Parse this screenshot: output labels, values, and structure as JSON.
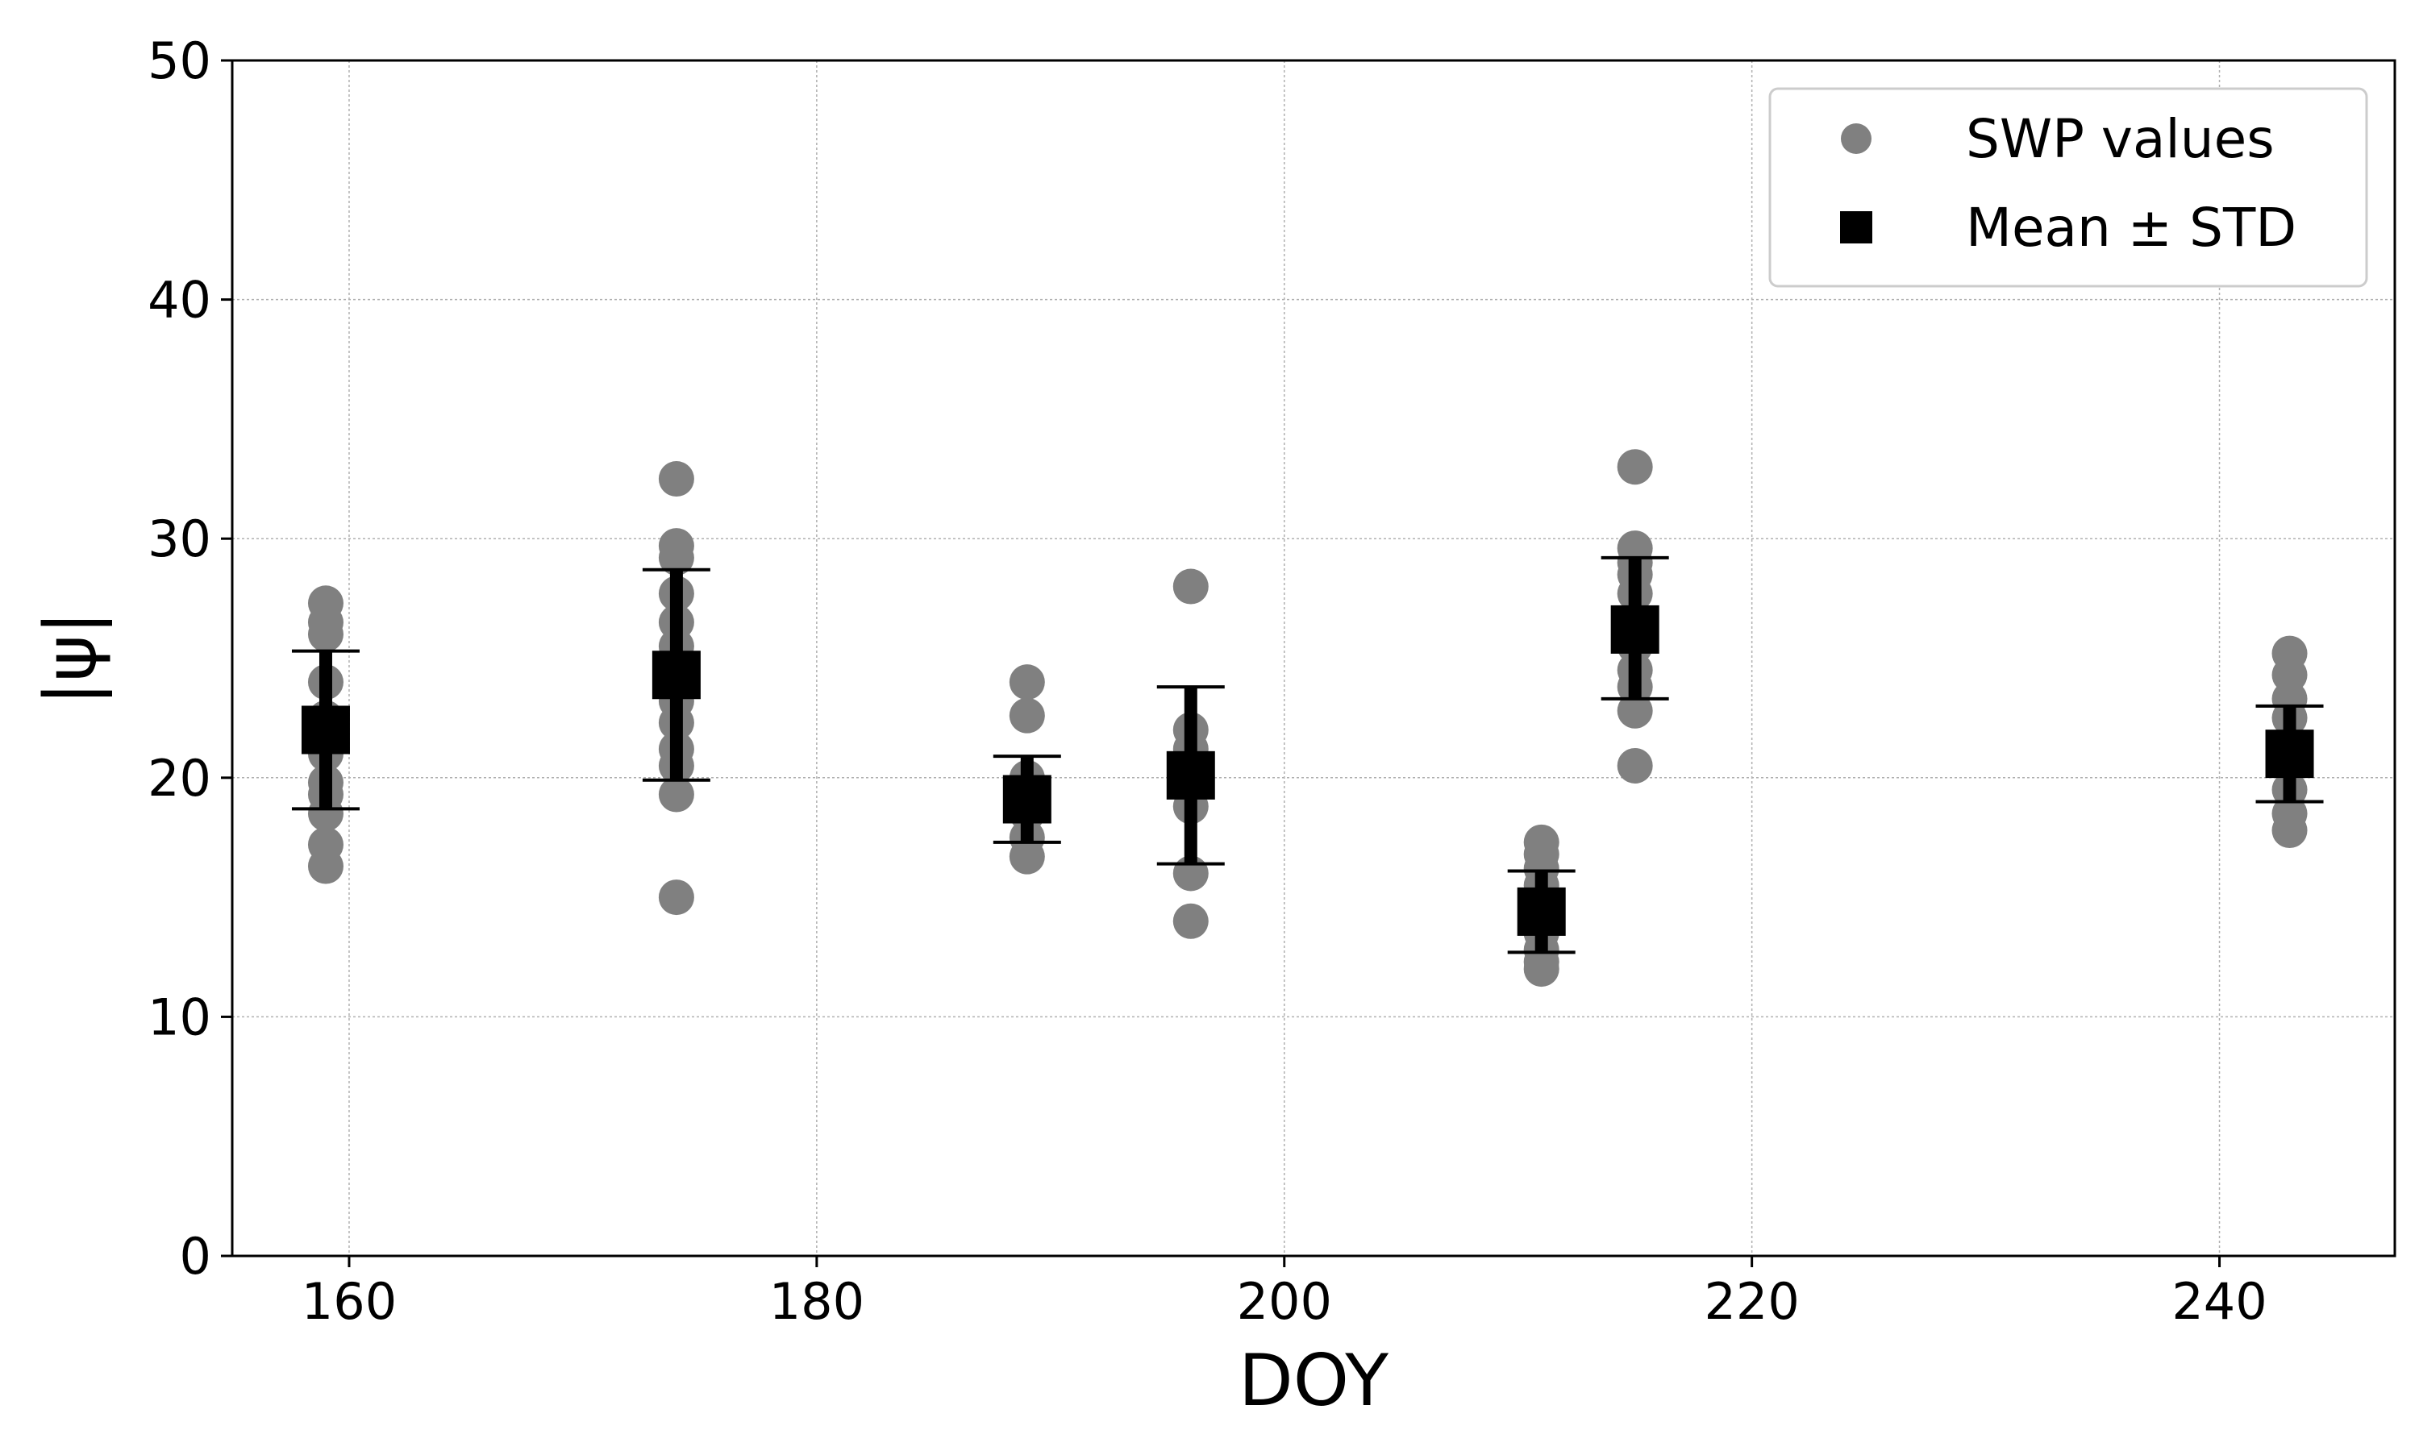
{
  "chart_data": {
    "type": "scatter",
    "xlabel": "DOY",
    "ylabel": "|ψ|",
    "xlim": [
      155,
      247.5
    ],
    "ylim": [
      0,
      50
    ],
    "x_ticks": [
      160,
      180,
      200,
      220,
      240
    ],
    "y_ticks": [
      0,
      10,
      20,
      30,
      40,
      50
    ],
    "grid": true,
    "legend_position": "top-right",
    "series": [
      {
        "name": "SWP values",
        "marker": "circle",
        "color": "#808080",
        "points": [
          [
            159,
            27.3
          ],
          [
            159,
            26.5
          ],
          [
            159,
            26.0
          ],
          [
            159,
            24.0
          ],
          [
            159,
            22.5
          ],
          [
            159,
            21.0
          ],
          [
            159,
            19.8
          ],
          [
            159,
            19.3
          ],
          [
            159,
            18.5
          ],
          [
            159,
            17.2
          ],
          [
            159,
            16.3
          ],
          [
            174,
            32.5
          ],
          [
            174,
            29.7
          ],
          [
            174,
            29.2
          ],
          [
            174,
            27.7
          ],
          [
            174,
            26.5
          ],
          [
            174,
            25.5
          ],
          [
            174,
            24.5
          ],
          [
            174,
            23.2
          ],
          [
            174,
            22.3
          ],
          [
            174,
            21.2
          ],
          [
            174,
            20.5
          ],
          [
            174,
            19.3
          ],
          [
            174,
            15.0
          ],
          [
            189,
            24.0
          ],
          [
            189,
            22.6
          ],
          [
            189,
            20.0
          ],
          [
            189,
            19.5
          ],
          [
            189,
            18.5
          ],
          [
            189,
            17.5
          ],
          [
            189,
            16.7
          ],
          [
            196,
            28.0
          ],
          [
            196,
            22.0
          ],
          [
            196,
            21.2
          ],
          [
            196,
            20.5
          ],
          [
            196,
            19.5
          ],
          [
            196,
            18.8
          ],
          [
            196,
            16.0
          ],
          [
            196,
            14.0
          ],
          [
            211,
            17.3
          ],
          [
            211,
            16.8
          ],
          [
            211,
            16.2
          ],
          [
            211,
            15.5
          ],
          [
            211,
            14.8
          ],
          [
            211,
            14.2
          ],
          [
            211,
            13.5
          ],
          [
            211,
            12.8
          ],
          [
            211,
            12.3
          ],
          [
            211,
            12.0
          ],
          [
            215,
            33.0
          ],
          [
            215,
            29.6
          ],
          [
            215,
            29.0
          ],
          [
            215,
            28.5
          ],
          [
            215,
            27.7
          ],
          [
            215,
            26.5
          ],
          [
            215,
            25.5
          ],
          [
            215,
            24.5
          ],
          [
            215,
            23.8
          ],
          [
            215,
            22.8
          ],
          [
            215,
            20.5
          ],
          [
            243,
            25.2
          ],
          [
            243,
            24.3
          ],
          [
            243,
            23.3
          ],
          [
            243,
            22.5
          ],
          [
            243,
            21.5
          ],
          [
            243,
            20.5
          ],
          [
            243,
            19.5
          ],
          [
            243,
            18.5
          ],
          [
            243,
            17.8
          ]
        ]
      },
      {
        "name": "Mean ± STD",
        "marker": "square",
        "color": "#000000",
        "points": [
          {
            "x": 159,
            "mean": 22.0,
            "lower": 18.7,
            "upper": 25.3
          },
          {
            "x": 174,
            "mean": 24.3,
            "lower": 19.9,
            "upper": 28.7
          },
          {
            "x": 189,
            "mean": 19.1,
            "lower": 17.3,
            "upper": 20.9
          },
          {
            "x": 196,
            "mean": 20.1,
            "lower": 16.4,
            "upper": 23.8
          },
          {
            "x": 211,
            "mean": 14.4,
            "lower": 12.7,
            "upper": 16.1
          },
          {
            "x": 215,
            "mean": 26.2,
            "lower": 23.3,
            "upper": 29.2
          },
          {
            "x": 243,
            "mean": 21.0,
            "lower": 19.0,
            "upper": 23.0
          }
        ]
      }
    ]
  }
}
